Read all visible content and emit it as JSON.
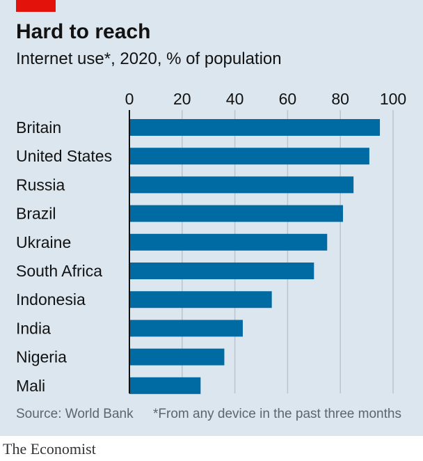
{
  "header": {
    "title": "Hard to reach",
    "subtitle": "Internet use*, 2020, % of population"
  },
  "footer": {
    "source": "Source: World Bank",
    "note": "*From any device in the past three months"
  },
  "brand": "The Economist",
  "colors": {
    "bar": "#006ba2",
    "background": "#dbe6ee",
    "accent": "#e3120b",
    "grid": "#b7c6cf"
  },
  "chart_data": {
    "type": "bar",
    "orientation": "horizontal",
    "title": "Hard to reach",
    "subtitle": "Internet use*, 2020, % of population",
    "xlim": [
      0,
      100
    ],
    "ticks": [
      0,
      20,
      40,
      60,
      80,
      100
    ],
    "grid": true,
    "categories": [
      "Britain",
      "United States",
      "Russia",
      "Brazil",
      "Ukraine",
      "South Africa",
      "Indonesia",
      "India",
      "Nigeria",
      "Mali"
    ],
    "values": [
      95,
      91,
      85,
      81,
      75,
      70,
      54,
      43,
      36,
      27
    ]
  }
}
